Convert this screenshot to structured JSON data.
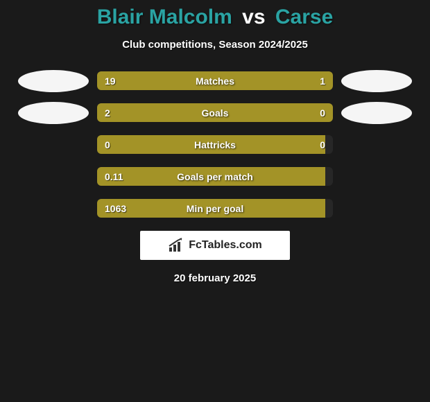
{
  "title": {
    "player1": "Blair Malcolm",
    "vs": "vs",
    "player2": "Carse",
    "color": "#2aa3a3"
  },
  "subtitle": "Club competitions, Season 2024/2025",
  "colors": {
    "left": "#a39327",
    "right": "#a39327",
    "empty": "rgba(60,60,60,0.25)"
  },
  "rows": [
    {
      "label": "Matches",
      "left_val": "19",
      "right_val": "1",
      "left_pct": 77,
      "right_pct": 23,
      "show_avatars": true
    },
    {
      "label": "Goals",
      "left_val": "2",
      "right_val": "0",
      "left_pct": 78,
      "right_pct": 22,
      "show_avatars": true
    },
    {
      "label": "Hattricks",
      "left_val": "0",
      "right_val": "0",
      "left_pct": 100,
      "right_pct": 0,
      "show_avatars": false
    },
    {
      "label": "Goals per match",
      "left_val": "0.11",
      "right_val": "",
      "left_pct": 100,
      "right_pct": 0,
      "show_avatars": false
    },
    {
      "label": "Min per goal",
      "left_val": "1063",
      "right_val": "",
      "left_pct": 100,
      "right_pct": 0,
      "show_avatars": false
    }
  ],
  "logo_text": "FcTables.com",
  "date": "20 february 2025"
}
